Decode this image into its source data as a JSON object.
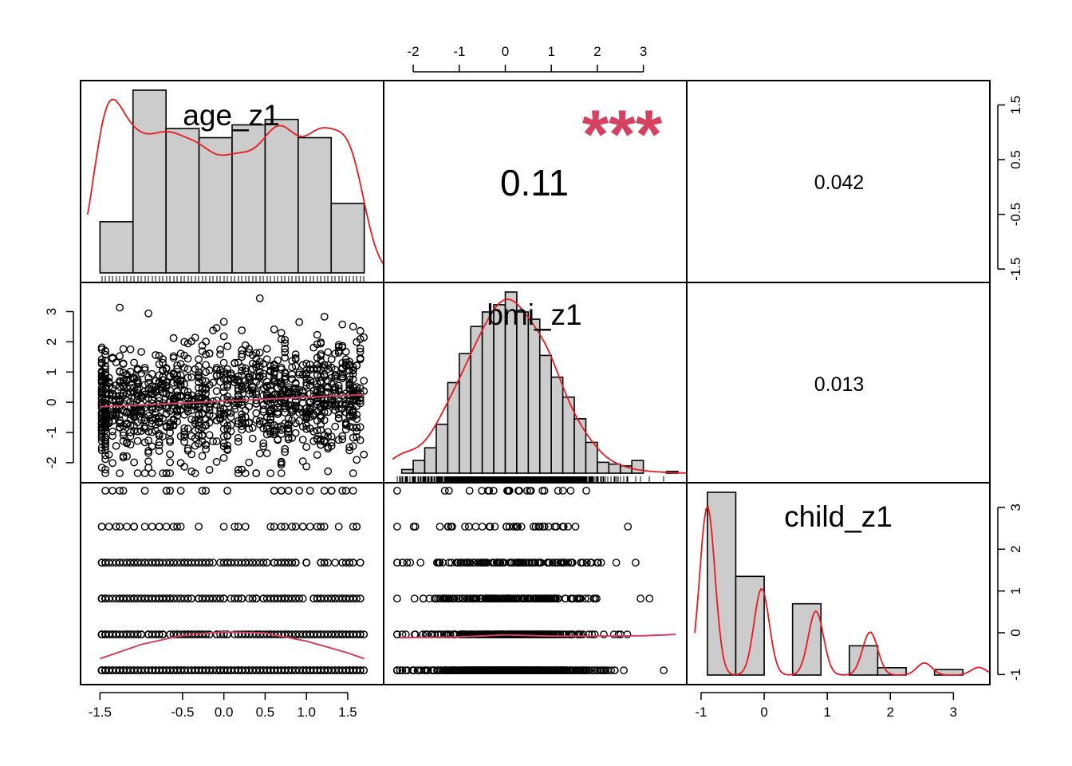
{
  "chart_data": {
    "type": "scatter-matrix",
    "variables": [
      "age_z1",
      "bmi_z1",
      "child_z1"
    ],
    "correlations": [
      {
        "pair": [
          "age_z1",
          "bmi_z1"
        ],
        "value": "0.11",
        "stars": "***"
      },
      {
        "pair": [
          "age_z1",
          "child_z1"
        ],
        "value": "0.042",
        "stars": ""
      },
      {
        "pair": [
          "bmi_z1",
          "child_z1"
        ],
        "value": "0.013",
        "stars": ""
      }
    ],
    "axes": {
      "age_x": {
        "ticks": [
          "-1.5",
          "-0.5",
          "0.0",
          "0.5",
          "1.0",
          "1.5"
        ],
        "range": [
          -1.6,
          1.8
        ]
      },
      "bmi_x_top": {
        "ticks": [
          "-2",
          "-1",
          "0",
          "1",
          "2",
          "3"
        ],
        "range": [
          -2.4,
          3.7
        ]
      },
      "bmi_y_left": {
        "ticks": [
          "-2",
          "-1",
          "0",
          "1",
          "2",
          "3"
        ],
        "range": [
          -2.4,
          3.7
        ]
      },
      "child_x": {
        "ticks": [
          "-1",
          "0",
          "1",
          "2",
          "3"
        ],
        "range": [
          -1.05,
          3.4
        ]
      },
      "child_y_right": {
        "ticks": [
          "-1",
          "0",
          "1",
          "2",
          "3"
        ],
        "range": [
          -1.05,
          3.4
        ]
      },
      "age_y_right": {
        "ticks": [
          "-1.5",
          "-0.5",
          "0.5",
          "1.5"
        ],
        "range": [
          -1.6,
          1.8
        ]
      }
    },
    "age_hist": {
      "edges": [
        -1.5,
        -1.1,
        -0.7,
        -0.3,
        0.1,
        0.5,
        0.9,
        1.3,
        1.7
      ],
      "heights": [
        0.28,
        1.0,
        0.79,
        0.74,
        0.81,
        0.84,
        0.74,
        0.38
      ]
    },
    "bmi_hist": {
      "edges": [
        -2.25,
        -2.0,
        -1.75,
        -1.5,
        -1.25,
        -1.0,
        -0.75,
        -0.5,
        -0.25,
        0.0,
        0.25,
        0.5,
        0.75,
        1.0,
        1.25,
        1.5,
        1.75,
        2.0,
        2.25,
        2.5,
        2.75,
        3.0,
        3.25,
        3.5,
        3.75
      ],
      "heights": [
        0.02,
        0.07,
        0.14,
        0.27,
        0.5,
        0.66,
        0.81,
        0.89,
        0.93,
        1.0,
        0.89,
        0.85,
        0.65,
        0.53,
        0.42,
        0.3,
        0.17,
        0.06,
        0.05,
        0.04,
        0.07,
        0.0,
        0.0,
        0.01
      ]
    },
    "child_hist": {
      "edges": [
        -0.9,
        -0.45,
        0.0,
        0.45,
        0.9,
        1.35,
        1.8,
        2.25,
        2.7,
        3.15
      ],
      "heights": [
        1.0,
        0.54,
        0.0,
        0.39,
        0.0,
        0.16,
        0.04,
        0.0,
        0.03
      ]
    },
    "child_levels": [
      -0.9,
      -0.04,
      0.82,
      1.68,
      2.54,
      3.4
    ],
    "age_bmi_fit": {
      "x": [
        -1.5,
        1.7
      ],
      "y": [
        -0.15,
        0.25
      ]
    },
    "age_child_fit": {
      "x": [
        -1.5,
        -1.0,
        -0.5,
        0.0,
        0.5,
        1.0,
        1.5,
        1.7
      ],
      "y": [
        -0.62,
        -0.28,
        -0.06,
        0.02,
        -0.01,
        -0.2,
        -0.48,
        -0.62
      ]
    },
    "bmi_child_fit": {
      "x": [
        -2.3,
        -1.0,
        0.0,
        1.0,
        2.0,
        3.0,
        3.7
      ],
      "y": [
        -0.12,
        -0.1,
        -0.05,
        -0.08,
        -0.08,
        -0.07,
        -0.04
      ]
    },
    "series_color": "#000000",
    "density_color": "#e8191f",
    "fit_color": "#d5415e",
    "stars_color": "#d5415e"
  }
}
